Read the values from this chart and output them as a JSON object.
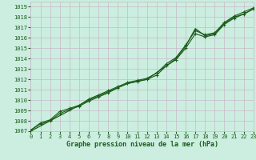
{
  "title": "Graphe pression niveau de la mer (hPa)",
  "background_color": "#cceee0",
  "grid_color": "#c8b8c8",
  "line_color": "#1a5c1a",
  "marker_color": "#1a5c1a",
  "text_color": "#1a5c1a",
  "ylim": [
    1007,
    1019.5
  ],
  "xlim": [
    0,
    23
  ],
  "yticks": [
    1007,
    1008,
    1009,
    1010,
    1011,
    1012,
    1013,
    1014,
    1015,
    1016,
    1017,
    1018,
    1019
  ],
  "xticks": [
    0,
    1,
    2,
    3,
    4,
    5,
    6,
    7,
    8,
    9,
    10,
    11,
    12,
    13,
    14,
    15,
    16,
    17,
    18,
    19,
    20,
    21,
    22,
    23
  ],
  "line1_x": [
    0,
    1,
    2,
    3,
    4,
    5,
    6,
    7,
    8,
    9,
    10,
    11,
    12,
    13,
    14,
    15,
    16,
    17,
    18,
    19,
    20,
    21,
    22,
    23
  ],
  "line1": [
    1007.1,
    1007.7,
    1008.0,
    1008.7,
    1009.1,
    1009.4,
    1009.9,
    1010.3,
    1010.7,
    1011.2,
    1011.6,
    1011.8,
    1012.0,
    1012.4,
    1013.3,
    1013.9,
    1015.0,
    1016.4,
    1016.1,
    1016.3,
    1017.3,
    1017.9,
    1018.3,
    1018.8
  ],
  "line2_x": [
    0,
    1,
    2,
    3,
    4,
    5,
    6,
    7,
    8,
    9,
    10,
    11,
    12,
    13,
    14,
    15,
    16,
    17,
    18,
    19,
    20,
    21,
    22,
    23
  ],
  "line2": [
    1007.1,
    1007.8,
    1008.1,
    1008.9,
    1009.2,
    1009.5,
    1010.1,
    1010.5,
    1010.9,
    1011.3,
    1011.7,
    1011.9,
    1012.1,
    1012.6,
    1013.5,
    1014.1,
    1015.3,
    1016.7,
    1016.3,
    1016.5,
    1017.5,
    1018.1,
    1018.5,
    1018.9
  ],
  "line3_x": [
    0,
    2,
    4,
    6,
    8,
    10,
    12,
    14,
    15,
    16,
    17,
    18,
    19,
    20,
    21,
    22,
    23
  ],
  "line3": [
    1007.0,
    1008.0,
    1009.0,
    1010.0,
    1010.8,
    1011.6,
    1012.0,
    1013.3,
    1014.0,
    1015.2,
    1016.9,
    1016.2,
    1016.4,
    1017.4,
    1018.0,
    1018.3,
    1018.8
  ],
  "tick_fontsize": 5,
  "label_fontsize": 6
}
